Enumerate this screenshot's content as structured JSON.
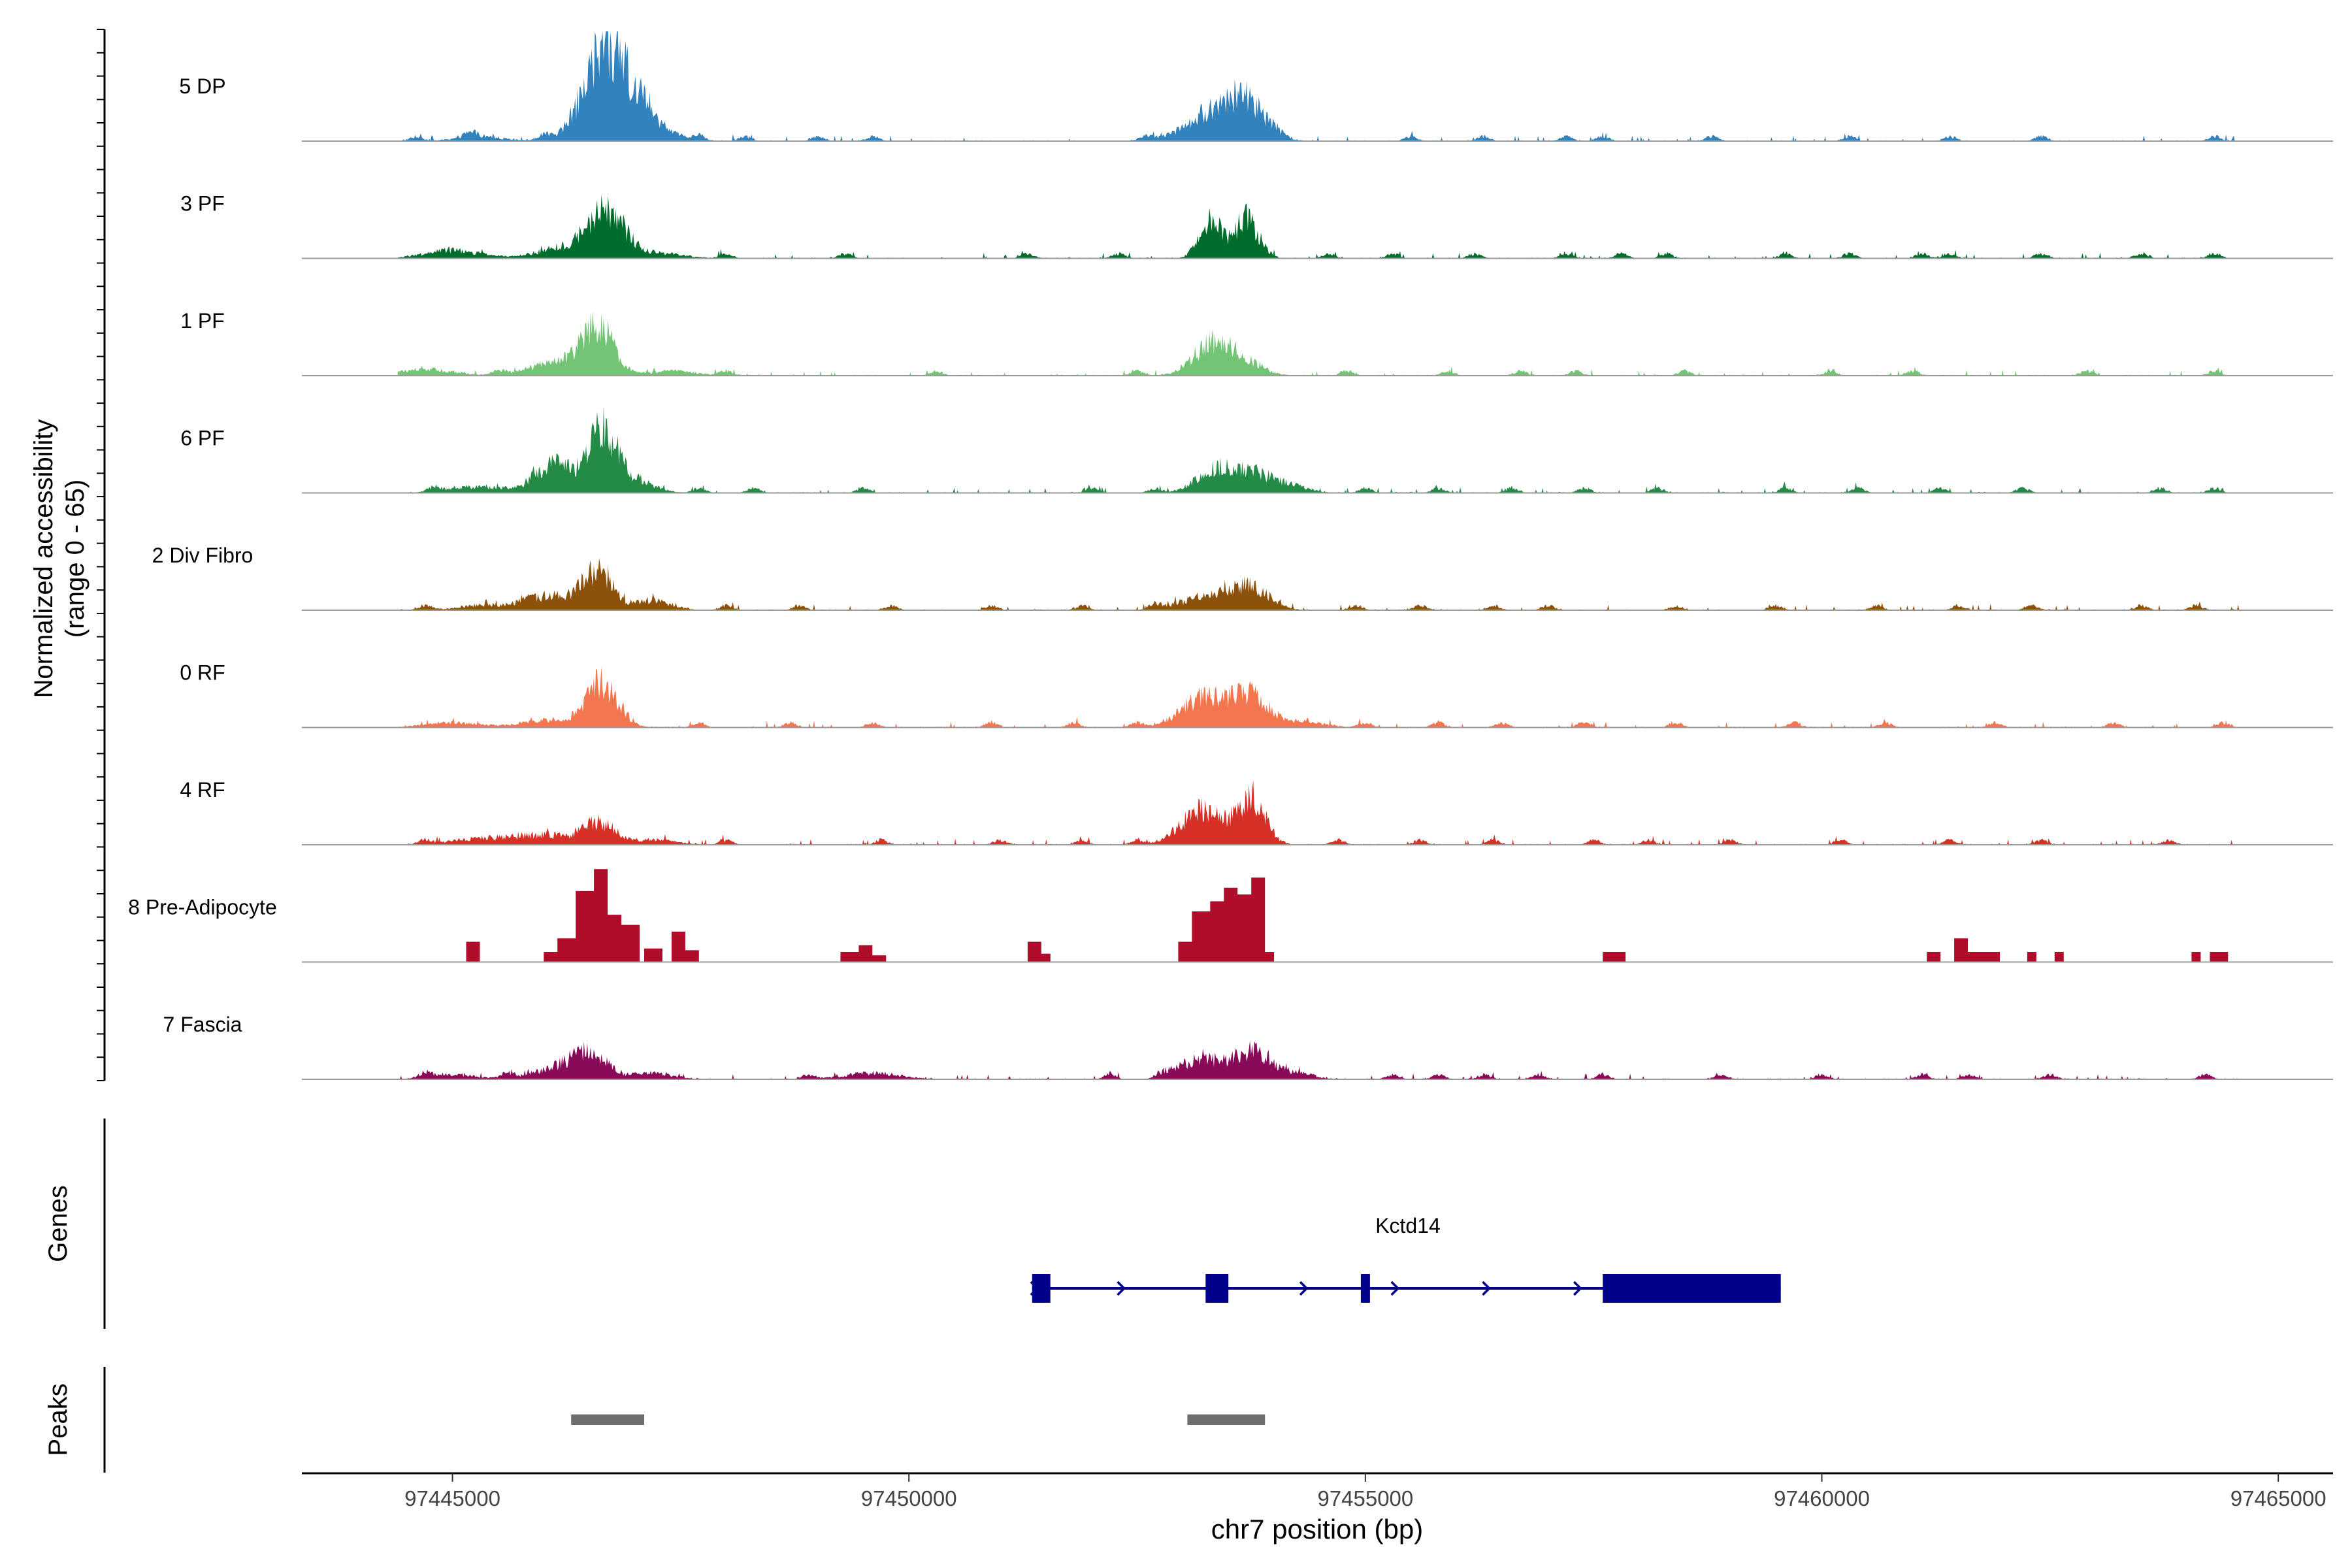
{
  "chart_data": {
    "type": "area",
    "title": "",
    "ylabel_line1": "Normalized accessibility",
    "ylabel_line2": "(range 0 - 65)",
    "ylim": [
      0,
      65
    ],
    "xlabel": "chr7 position (bp)",
    "xlim": [
      97443350,
      97465600
    ],
    "x_ticks": [
      97445000,
      97450000,
      97455000,
      97460000,
      97465000
    ],
    "x_tick_labels": [
      "97445000",
      "97450000",
      "97455000",
      "97460000",
      "97465000"
    ],
    "tracks": [
      {
        "name": "5 DP",
        "color": "#3182bd",
        "style": "smooth",
        "peaks": [
          [
            97446700,
            58,
            250
          ],
          [
            97447150,
            10,
            250
          ],
          [
            97445300,
            3,
            250
          ],
          [
            97453400,
            20,
            320
          ],
          [
            97453700,
            15,
            200
          ]
        ],
        "blips": [
          97444600,
          97445200,
          97446000,
          97447700,
          97448200,
          97449000,
          97449600,
          97452600,
          97454000,
          97455500,
          97456300,
          97457200,
          97457600,
          97458800,
          97460300,
          97461400,
          97462400,
          97464300
        ]
      },
      {
        "name": "3 PF",
        "color": "#006d2c",
        "style": "smooth",
        "peaks": [
          [
            97446700,
            28,
            200
          ],
          [
            97446250,
            7,
            300
          ],
          [
            97445000,
            5,
            300
          ],
          [
            97447300,
            3,
            250
          ],
          [
            97453300,
            24,
            120
          ],
          [
            97453700,
            25,
            130
          ]
        ],
        "blips": [
          97448000,
          97449300,
          97451300,
          97452300,
          97454600,
          97455300,
          97456200,
          97457200,
          97457800,
          97458300,
          97459600,
          97460300,
          97461100,
          97461400,
          97462400,
          97463500,
          97464300
        ]
      },
      {
        "name": "1 PF",
        "color": "#74c476",
        "style": "smooth",
        "peaks": [
          [
            97446600,
            30,
            160
          ],
          [
            97446200,
            10,
            300
          ],
          [
            97444700,
            4,
            300
          ],
          [
            97447400,
            3,
            250
          ],
          [
            97453300,
            18,
            200
          ],
          [
            97453650,
            10,
            200
          ]
        ],
        "blips": [
          97445500,
          97448000,
          97450300,
          97452500,
          97454800,
          97455900,
          97456700,
          97457300,
          97458500,
          97460100,
          97461000,
          97462900,
          97464300
        ]
      },
      {
        "name": "6 PF",
        "color": "#238b45",
        "style": "smooth",
        "peaks": [
          [
            97446650,
            38,
            150
          ],
          [
            97446150,
            18,
            220
          ],
          [
            97447000,
            8,
            200
          ],
          [
            97445300,
            4,
            300
          ],
          [
            97453350,
            14,
            200
          ],
          [
            97453750,
            12,
            200
          ],
          [
            97454150,
            5,
            200
          ]
        ],
        "blips": [
          97444800,
          97445900,
          97447700,
          97448300,
          97449500,
          97452000,
          97452700,
          97455000,
          97455800,
          97456600,
          97457400,
          97458200,
          97459600,
          97460400,
          97461300,
          97462200,
          97463700,
          97464300
        ]
      },
      {
        "name": "2 Div Fibro",
        "color": "#8c510a",
        "style": "smooth",
        "peaks": [
          [
            97446600,
            24,
            160
          ],
          [
            97446100,
            9,
            300
          ],
          [
            97447200,
            6,
            200
          ],
          [
            97453300,
            9,
            300
          ],
          [
            97453750,
            13,
            200
          ],
          [
            97445300,
            3,
            250
          ]
        ],
        "blips": [
          97444700,
          97445800,
          97448000,
          97448800,
          97449800,
          97450900,
          97451900,
          97452700,
          97454900,
          97455600,
          97456400,
          97457000,
          97458400,
          97459500,
          97460600,
          97461500,
          97462300,
          97463500,
          97464100
        ]
      },
      {
        "name": "0 RF",
        "color": "#f4764f",
        "style": "smooth",
        "peaks": [
          [
            97446650,
            27,
            170
          ],
          [
            97446100,
            5,
            300
          ],
          [
            97453200,
            18,
            230
          ],
          [
            97453700,
            20,
            200
          ],
          [
            97454200,
            4,
            300
          ],
          [
            97445000,
            3,
            300
          ]
        ],
        "blips": [
          97447700,
          97448700,
          97449600,
          97450900,
          97451800,
          97452500,
          97455000,
          97455800,
          97456500,
          97457400,
          97458400,
          97459700,
          97460700,
          97461900,
          97463200,
          97464400
        ]
      },
      {
        "name": "4 RF",
        "color": "#d73027",
        "style": "smooth",
        "peaks": [
          [
            97446600,
            14,
            170
          ],
          [
            97446000,
            6,
            300
          ],
          [
            97447200,
            3,
            250
          ],
          [
            97445300,
            4,
            300
          ],
          [
            97453200,
            22,
            230
          ],
          [
            97453750,
            30,
            150
          ]
        ],
        "blips": [
          97444700,
          97448000,
          97449700,
          97451000,
          97451900,
          97452500,
          97454700,
          97455600,
          97456400,
          97457500,
          97458100,
          97459000,
          97460200,
          97461400,
          97462400,
          97463800
        ]
      },
      {
        "name": "8 Pre-Adipocyte",
        "color": "#b00d2b",
        "style": "blocky",
        "blocks": [
          [
            97445150,
            97445300,
            12
          ],
          [
            97446000,
            97446150,
            6
          ],
          [
            97446150,
            97446350,
            14
          ],
          [
            97446350,
            97446550,
            42
          ],
          [
            97446550,
            97446700,
            55
          ],
          [
            97446700,
            97446850,
            28
          ],
          [
            97446850,
            97447050,
            22
          ],
          [
            97447100,
            97447300,
            8
          ],
          [
            97447400,
            97447550,
            18
          ],
          [
            97447550,
            97447700,
            7
          ],
          [
            97449250,
            97449450,
            6
          ],
          [
            97449450,
            97449600,
            10
          ],
          [
            97449600,
            97449750,
            4
          ],
          [
            97451300,
            97451450,
            12
          ],
          [
            97451450,
            97451550,
            5
          ],
          [
            97452950,
            97453100,
            12
          ],
          [
            97453100,
            97453300,
            30
          ],
          [
            97453300,
            97453450,
            36
          ],
          [
            97453450,
            97453600,
            44
          ],
          [
            97453600,
            97453750,
            40
          ],
          [
            97453750,
            97453900,
            50
          ],
          [
            97453900,
            97454000,
            6
          ],
          [
            97457600,
            97457750,
            6
          ],
          [
            97457750,
            97457850,
            6
          ],
          [
            97461150,
            97461300,
            6
          ],
          [
            97461450,
            97461600,
            14
          ],
          [
            97461600,
            97461750,
            6
          ],
          [
            97461750,
            97461950,
            6
          ],
          [
            97462250,
            97462350,
            6
          ],
          [
            97462550,
            97462650,
            6
          ],
          [
            97464050,
            97464150,
            6
          ],
          [
            97464250,
            97464450,
            6
          ]
        ]
      },
      {
        "name": "7 Fascia",
        "color": "#8a0a5a",
        "style": "smooth",
        "peaks": [
          [
            97446500,
            16,
            200
          ],
          [
            97446100,
            6,
            250
          ],
          [
            97447200,
            4,
            200
          ],
          [
            97445000,
            3,
            250
          ],
          [
            97453200,
            14,
            220
          ],
          [
            97453750,
            17,
            180
          ],
          [
            97454200,
            5,
            200
          ],
          [
            97449600,
            4,
            300
          ]
        ],
        "blips": [
          97444700,
          97445600,
          97448900,
          97452200,
          97452800,
          97455300,
          97455800,
          97456300,
          97456900,
          97457600,
          97458900,
          97460000,
          97461100,
          97461600,
          97462500,
          97464200
        ]
      }
    ],
    "genes_label": "Genes",
    "gene": {
      "name": "Kctd14",
      "color": "#00008b",
      "strand": "+",
      "start": 97451350,
      "end": 97459550,
      "exons": [
        [
          97451350,
          97451550
        ],
        [
          97453250,
          97453500
        ],
        [
          97454950,
          97455050
        ],
        [
          97457600,
          97459550
        ]
      ],
      "thick_exons": [
        [
          97457600,
          97459550
        ]
      ],
      "arrows": [
        97451350,
        97452300,
        97454300,
        97455300,
        97456300,
        97457300
      ]
    },
    "peaks_label": "Peaks",
    "peaks_color": "#6e6e6e",
    "peaks": [
      [
        97446300,
        97447100
      ],
      [
        97453050,
        97453900
      ]
    ]
  }
}
